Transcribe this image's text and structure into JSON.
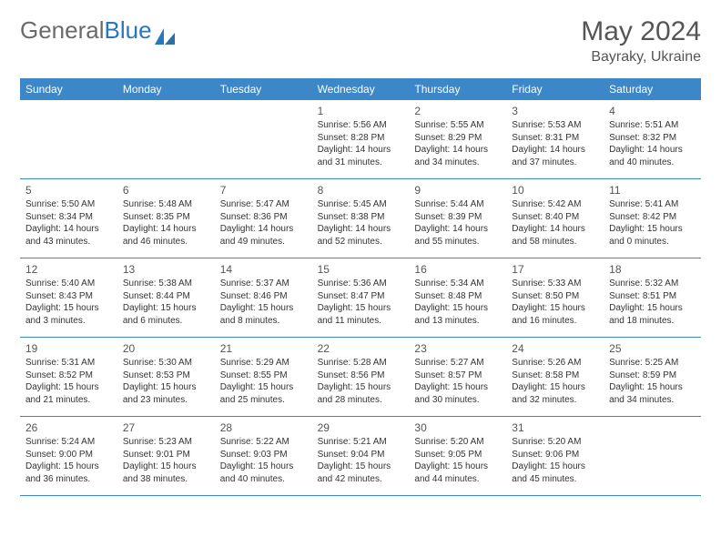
{
  "brand": {
    "part1": "General",
    "part2": "Blue"
  },
  "title": "May 2024",
  "location": "Bayraky, Ukraine",
  "colors": {
    "header_bg": "#3b87c8",
    "header_text": "#ffffff",
    "brand_gray": "#6a6a6a",
    "brand_blue": "#2676c0",
    "cell_text": "#333333",
    "title_text": "#555555",
    "rule": "#3b87c8",
    "background": "#ffffff"
  },
  "weekdays": [
    "Sunday",
    "Monday",
    "Tuesday",
    "Wednesday",
    "Thursday",
    "Friday",
    "Saturday"
  ],
  "weeks": [
    [
      null,
      null,
      null,
      {
        "n": "1",
        "sr": "Sunrise: 5:56 AM",
        "ss": "Sunset: 8:28 PM",
        "d1": "Daylight: 14 hours",
        "d2": "and 31 minutes."
      },
      {
        "n": "2",
        "sr": "Sunrise: 5:55 AM",
        "ss": "Sunset: 8:29 PM",
        "d1": "Daylight: 14 hours",
        "d2": "and 34 minutes."
      },
      {
        "n": "3",
        "sr": "Sunrise: 5:53 AM",
        "ss": "Sunset: 8:31 PM",
        "d1": "Daylight: 14 hours",
        "d2": "and 37 minutes."
      },
      {
        "n": "4",
        "sr": "Sunrise: 5:51 AM",
        "ss": "Sunset: 8:32 PM",
        "d1": "Daylight: 14 hours",
        "d2": "and 40 minutes."
      }
    ],
    [
      {
        "n": "5",
        "sr": "Sunrise: 5:50 AM",
        "ss": "Sunset: 8:34 PM",
        "d1": "Daylight: 14 hours",
        "d2": "and 43 minutes."
      },
      {
        "n": "6",
        "sr": "Sunrise: 5:48 AM",
        "ss": "Sunset: 8:35 PM",
        "d1": "Daylight: 14 hours",
        "d2": "and 46 minutes."
      },
      {
        "n": "7",
        "sr": "Sunrise: 5:47 AM",
        "ss": "Sunset: 8:36 PM",
        "d1": "Daylight: 14 hours",
        "d2": "and 49 minutes."
      },
      {
        "n": "8",
        "sr": "Sunrise: 5:45 AM",
        "ss": "Sunset: 8:38 PM",
        "d1": "Daylight: 14 hours",
        "d2": "and 52 minutes."
      },
      {
        "n": "9",
        "sr": "Sunrise: 5:44 AM",
        "ss": "Sunset: 8:39 PM",
        "d1": "Daylight: 14 hours",
        "d2": "and 55 minutes."
      },
      {
        "n": "10",
        "sr": "Sunrise: 5:42 AM",
        "ss": "Sunset: 8:40 PM",
        "d1": "Daylight: 14 hours",
        "d2": "and 58 minutes."
      },
      {
        "n": "11",
        "sr": "Sunrise: 5:41 AM",
        "ss": "Sunset: 8:42 PM",
        "d1": "Daylight: 15 hours",
        "d2": "and 0 minutes."
      }
    ],
    [
      {
        "n": "12",
        "sr": "Sunrise: 5:40 AM",
        "ss": "Sunset: 8:43 PM",
        "d1": "Daylight: 15 hours",
        "d2": "and 3 minutes."
      },
      {
        "n": "13",
        "sr": "Sunrise: 5:38 AM",
        "ss": "Sunset: 8:44 PM",
        "d1": "Daylight: 15 hours",
        "d2": "and 6 minutes."
      },
      {
        "n": "14",
        "sr": "Sunrise: 5:37 AM",
        "ss": "Sunset: 8:46 PM",
        "d1": "Daylight: 15 hours",
        "d2": "and 8 minutes."
      },
      {
        "n": "15",
        "sr": "Sunrise: 5:36 AM",
        "ss": "Sunset: 8:47 PM",
        "d1": "Daylight: 15 hours",
        "d2": "and 11 minutes."
      },
      {
        "n": "16",
        "sr": "Sunrise: 5:34 AM",
        "ss": "Sunset: 8:48 PM",
        "d1": "Daylight: 15 hours",
        "d2": "and 13 minutes."
      },
      {
        "n": "17",
        "sr": "Sunrise: 5:33 AM",
        "ss": "Sunset: 8:50 PM",
        "d1": "Daylight: 15 hours",
        "d2": "and 16 minutes."
      },
      {
        "n": "18",
        "sr": "Sunrise: 5:32 AM",
        "ss": "Sunset: 8:51 PM",
        "d1": "Daylight: 15 hours",
        "d2": "and 18 minutes."
      }
    ],
    [
      {
        "n": "19",
        "sr": "Sunrise: 5:31 AM",
        "ss": "Sunset: 8:52 PM",
        "d1": "Daylight: 15 hours",
        "d2": "and 21 minutes."
      },
      {
        "n": "20",
        "sr": "Sunrise: 5:30 AM",
        "ss": "Sunset: 8:53 PM",
        "d1": "Daylight: 15 hours",
        "d2": "and 23 minutes."
      },
      {
        "n": "21",
        "sr": "Sunrise: 5:29 AM",
        "ss": "Sunset: 8:55 PM",
        "d1": "Daylight: 15 hours",
        "d2": "and 25 minutes."
      },
      {
        "n": "22",
        "sr": "Sunrise: 5:28 AM",
        "ss": "Sunset: 8:56 PM",
        "d1": "Daylight: 15 hours",
        "d2": "and 28 minutes."
      },
      {
        "n": "23",
        "sr": "Sunrise: 5:27 AM",
        "ss": "Sunset: 8:57 PM",
        "d1": "Daylight: 15 hours",
        "d2": "and 30 minutes."
      },
      {
        "n": "24",
        "sr": "Sunrise: 5:26 AM",
        "ss": "Sunset: 8:58 PM",
        "d1": "Daylight: 15 hours",
        "d2": "and 32 minutes."
      },
      {
        "n": "25",
        "sr": "Sunrise: 5:25 AM",
        "ss": "Sunset: 8:59 PM",
        "d1": "Daylight: 15 hours",
        "d2": "and 34 minutes."
      }
    ],
    [
      {
        "n": "26",
        "sr": "Sunrise: 5:24 AM",
        "ss": "Sunset: 9:00 PM",
        "d1": "Daylight: 15 hours",
        "d2": "and 36 minutes."
      },
      {
        "n": "27",
        "sr": "Sunrise: 5:23 AM",
        "ss": "Sunset: 9:01 PM",
        "d1": "Daylight: 15 hours",
        "d2": "and 38 minutes."
      },
      {
        "n": "28",
        "sr": "Sunrise: 5:22 AM",
        "ss": "Sunset: 9:03 PM",
        "d1": "Daylight: 15 hours",
        "d2": "and 40 minutes."
      },
      {
        "n": "29",
        "sr": "Sunrise: 5:21 AM",
        "ss": "Sunset: 9:04 PM",
        "d1": "Daylight: 15 hours",
        "d2": "and 42 minutes."
      },
      {
        "n": "30",
        "sr": "Sunrise: 5:20 AM",
        "ss": "Sunset: 9:05 PM",
        "d1": "Daylight: 15 hours",
        "d2": "and 44 minutes."
      },
      {
        "n": "31",
        "sr": "Sunrise: 5:20 AM",
        "ss": "Sunset: 9:06 PM",
        "d1": "Daylight: 15 hours",
        "d2": "and 45 minutes."
      },
      null
    ]
  ]
}
